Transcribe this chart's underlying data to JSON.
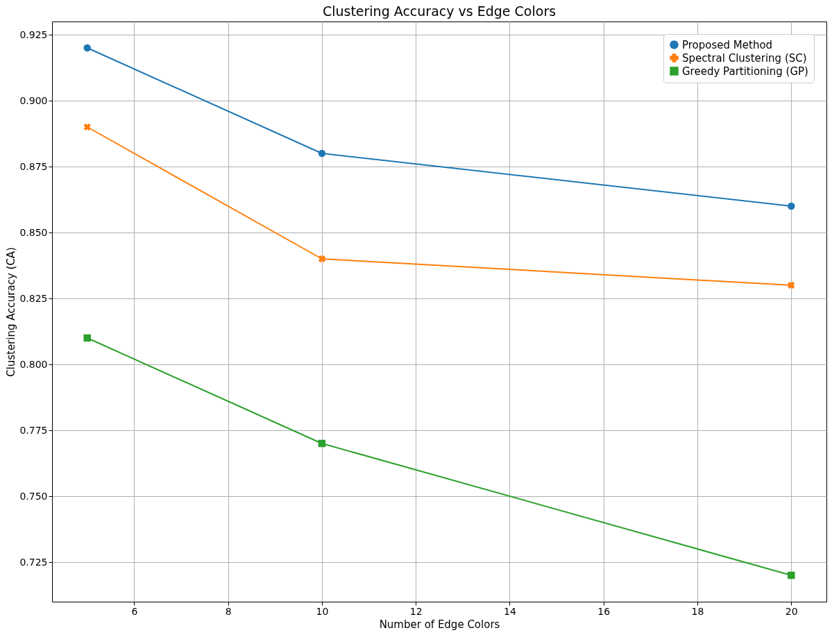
{
  "chart_data": {
    "type": "line",
    "title": "Clustering Accuracy vs Edge Colors",
    "xlabel": "Number of Edge Colors",
    "ylabel": "Clustering Accuracy (CA)",
    "x": [
      5,
      10,
      20
    ],
    "series": [
      {
        "name": "Proposed Method",
        "color": "#1f77b4",
        "marker": "circle",
        "values": [
          0.92,
          0.88,
          0.86
        ]
      },
      {
        "name": "Spectral Clustering (SC)",
        "color": "#ff7f0e",
        "marker": "cross",
        "values": [
          0.89,
          0.84,
          0.83
        ]
      },
      {
        "name": "Greedy Partitioning (GP)",
        "color": "#2ca02c",
        "marker": "square",
        "values": [
          0.81,
          0.77,
          0.72
        ]
      }
    ],
    "xlim": [
      4.25,
      20.75
    ],
    "xticks": [
      6,
      8,
      10,
      12,
      14,
      16,
      18,
      20
    ],
    "ylim": [
      0.71,
      0.93
    ],
    "yticks": [
      0.725,
      {
        "value": 0.75,
        "label": "0.750"
      },
      0.775,
      {
        "value": 0.8,
        "label": "0.800"
      },
      0.825,
      {
        "value": 0.85,
        "label": "0.850"
      },
      0.875,
      {
        "value": 0.9,
        "label": "0.900"
      },
      0.925
    ],
    "grid": true,
    "legend": "top right",
    "line_style": "solid"
  }
}
